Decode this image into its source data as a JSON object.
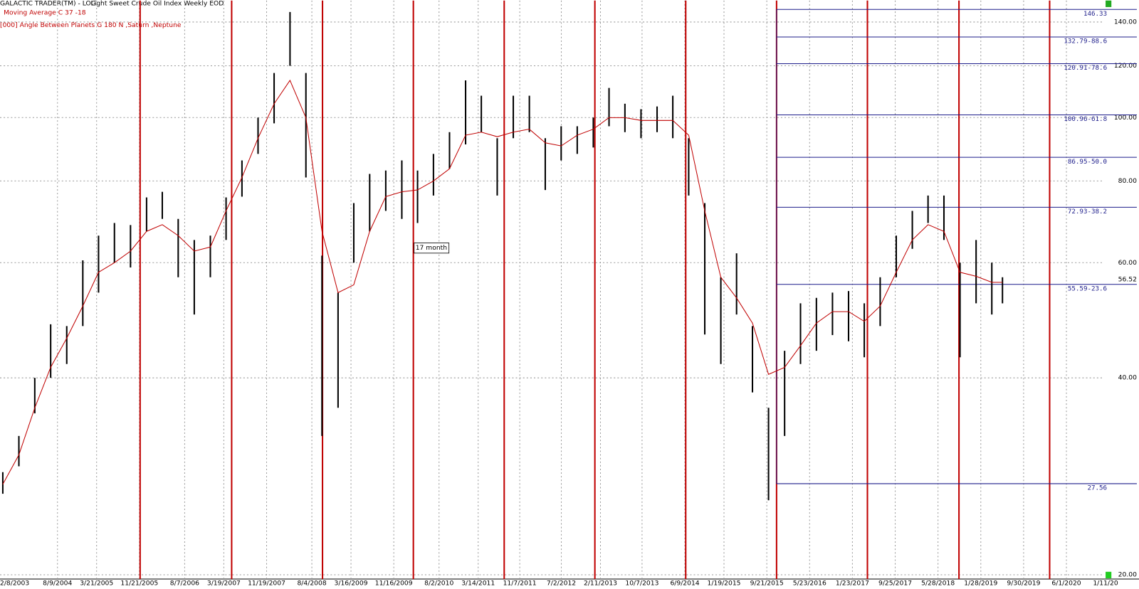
{
  "chart_data": {
    "type": "hilo",
    "subtitle": "GALACTIC TRADER(TM) - LOG",
    "title": "Light Sweet Crude Oil Index Weekly EOD",
    "log_scale": true,
    "grid": true,
    "color": "#000000",
    "xlim": [
      "9/15/2003",
      "7/9/2021"
    ],
    "xticks": [
      "2/8/2003",
      "8/9/2004",
      "3/21/2005",
      "11/21/2005",
      "8/7/2006",
      "3/19/2007",
      "11/19/2007",
      "8/4/2008",
      "3/16/2009",
      "11/16/2009",
      "8/2/2010",
      "3/14/2011",
      "11/7/2011",
      "7/2/2012",
      "2/11/2013",
      "10/7/2013",
      "6/9/2014",
      "1/19/2015",
      "9/21/2015",
      "5/23/2016",
      "1/23/2017",
      "9/25/2017",
      "5/28/2018",
      "1/28/2019",
      "9/30/2019",
      "6/1/2020",
      {
        "value": "1/11/2021",
        "label": "1/11/20"
      }
    ],
    "ylim": [
      19.7,
      151
    ],
    "yticks": [
      {
        "value": 20,
        "label": "20.00"
      },
      {
        "value": 40,
        "label": "40.00"
      },
      {
        "value": 60,
        "label": "60.00"
      },
      {
        "value": 80,
        "label": "80.00"
      },
      {
        "value": 100,
        "label": "100.00"
      },
      {
        "value": 120,
        "label": "120.00"
      },
      {
        "value": 140,
        "label": "140.00"
      }
    ],
    "x": [
      "10/1/2003",
      "1/1/2004",
      "4/1/2004",
      "7/1/2004",
      "10/1/2004",
      "1/1/2005",
      "4/1/2005",
      "7/1/2005",
      "10/1/2005",
      "1/1/2006",
      "4/1/2006",
      "7/1/2006",
      "10/1/2006",
      "1/1/2007",
      "4/1/2007",
      "7/1/2007",
      "10/1/2007",
      "1/1/2008",
      "4/1/2008",
      "7/1/2008",
      "10/1/2008",
      "1/1/2009",
      "4/1/2009",
      "7/1/2009",
      "10/1/2009",
      "1/1/2010",
      "4/1/2010",
      "7/1/2010",
      "10/1/2010",
      "1/1/2011",
      "4/1/2011",
      "7/1/2011",
      "10/1/2011",
      "1/1/2012",
      "4/1/2012",
      "7/1/2012",
      "10/1/2012",
      "1/1/2013",
      "4/1/2013",
      "7/1/2013",
      "10/1/2013",
      "1/1/2014",
      "4/1/2014",
      "7/1/2014",
      "10/1/2014",
      "1/1/2015",
      "4/1/2015",
      "7/1/2015",
      "10/1/2015",
      "1/1/2016",
      "4/1/2016",
      "7/1/2016",
      "10/1/2016",
      "1/1/2017",
      "4/1/2017",
      "7/1/2017",
      "10/1/2017",
      "1/1/2018",
      "4/1/2018",
      "7/1/2018",
      "10/1/2018",
      "1/1/2019",
      "4/1/2019",
      "6/1/2019"
    ],
    "high": [
      28.7,
      32.6,
      40,
      48.3,
      48,
      60.5,
      66,
      69,
      68.5,
      75.5,
      77,
      70,
      65,
      66,
      75.5,
      86,
      100,
      117,
      145,
      117,
      61.5,
      54,
      74,
      82,
      83,
      86,
      83,
      88,
      95,
      114,
      108,
      93,
      108,
      108,
      93,
      97,
      97,
      100,
      111,
      105,
      103,
      104,
      108,
      93,
      74,
      57,
      62,
      48,
      36,
      44,
      52,
      53,
      54,
      54.3,
      52,
      57,
      66,
      72,
      76,
      76,
      60,
      65,
      60,
      57
    ],
    "low": [
      26.6,
      29.3,
      35.3,
      40,
      42,
      48,
      54,
      60,
      59,
      67,
      70,
      57,
      50,
      57,
      65,
      75.7,
      88,
      98,
      120,
      81,
      32.6,
      36,
      60,
      67,
      72,
      70,
      69,
      76,
      83.5,
      91,
      95,
      76,
      93,
      95,
      77.5,
      86,
      88,
      90,
      97,
      95,
      93,
      95,
      93,
      76,
      46.6,
      42,
      50,
      38,
      26,
      32.6,
      42,
      44,
      46.5,
      45.5,
      43,
      48,
      57,
      63,
      69,
      65,
      43,
      52,
      50,
      52
    ],
    "series": [
      {
        "name": "Moving Average C 37 -18",
        "color": "#c00000",
        "values": [
          27.5,
          30.5,
          36,
          41.5,
          46,
          51.5,
          58,
          60,
          62.5,
          67,
          68.6,
          66,
          62.5,
          63.4,
          72,
          81,
          93,
          105,
          114,
          100,
          67,
          54,
          55.5,
          67,
          75.7,
          77,
          77.5,
          80,
          83.5,
          94,
          95,
          93.5,
          95,
          96,
          91.5,
          90.5,
          94,
          96,
          100,
          100,
          99,
          99,
          99,
          94,
          72,
          57,
          53,
          48.5,
          40.5,
          41.5,
          44.8,
          48.5,
          50.5,
          50.5,
          48.8,
          51.5,
          58,
          65,
          68.6,
          67,
          58,
          57.2,
          56,
          56
        ]
      }
    ],
    "events": {
      "name": "[000] Angle Between Planets G 180 N ,Saturn ,Neptune",
      "color": "#c00000",
      "x": [
        "11/25/2005",
        "5/3/2007",
        "10/4/2008",
        "3/8/2010",
        "8/10/2011",
        "1/10/2013",
        "6/14/2014",
        "11/16/2015",
        "4/19/2017",
        "9/25/2018",
        "2/26/2020"
      ]
    },
    "annotation": "17 month",
    "levels": {
      "color": "#1c1c8a",
      "x_start": "11/16/2015",
      "values": [
        146.33,
        132.79,
        120.91,
        100.96,
        86.95,
        72.93,
        55.59,
        27.56
      ],
      "value_labels": [
        "146.33",
        "132.79-88.6",
        "120.91-78.6",
        "100.96-61.8",
        "86.95-50.0",
        "72.93-38.2",
        "55.59-23.6",
        "27.56"
      ]
    },
    "last_value": 56.52
  }
}
